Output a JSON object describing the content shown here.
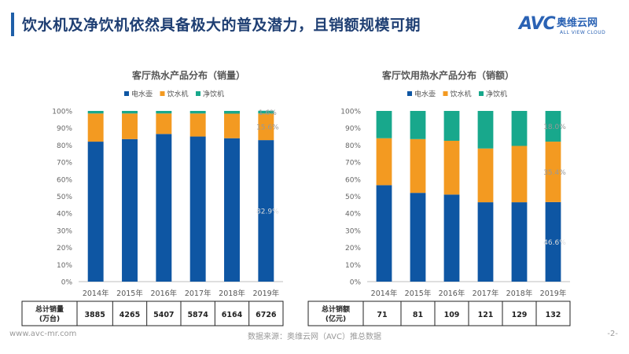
{
  "page": {
    "title": "饮水机及净饮机依然具备极大的普及潜力，且销额规模可期",
    "footer_url": "www.avc-mr.com",
    "footer_source": "数据来源：奥维云网（AVC）推总数据",
    "page_number": "-2-"
  },
  "logo": {
    "mark": "AVC",
    "cn": "奥维云网",
    "en": "ALL VIEW CLOUD"
  },
  "colors": {
    "electric_kettle": "#0e56a3",
    "water_dispenser": "#f39a21",
    "purifier_dispenser": "#18a88c"
  },
  "chart_data": [
    {
      "type": "bar",
      "stacked": true,
      "title": "客厅热水产品分布（销量）",
      "categories": [
        "2014年",
        "2015年",
        "2016年",
        "2017年",
        "2018年",
        "2019年"
      ],
      "series": [
        {
          "name": "电水壶",
          "values": [
            82,
            83.5,
            86.5,
            85,
            84,
            82.9
          ]
        },
        {
          "name": "饮水机",
          "values": [
            16.5,
            15,
            12,
            13.5,
            14.4,
            15.6
          ]
        },
        {
          "name": "净饮机",
          "values": [
            1.5,
            1.5,
            1.5,
            1.5,
            1.6,
            1.6
          ]
        }
      ],
      "data_labels": {
        "电水壶": "82.9%",
        "饮水机": "15.6%",
        "净饮机": "1.6%"
      },
      "ylim": [
        0,
        100
      ],
      "yticks": [
        "0%",
        "10%",
        "20%",
        "30%",
        "40%",
        "50%",
        "60%",
        "70%",
        "80%",
        "90%",
        "100%"
      ],
      "legend_position": "top",
      "grid": false,
      "table": {
        "header": "总计销量\n(万台)",
        "values": [
          "3885",
          "4265",
          "5407",
          "5874",
          "6164",
          "6726"
        ]
      }
    },
    {
      "type": "bar",
      "stacked": true,
      "title": "客厅饮用热水产品分布（销额）",
      "categories": [
        "2014年",
        "2015年",
        "2016年",
        "2017年",
        "2018年",
        "2019年"
      ],
      "series": [
        {
          "name": "电水壶",
          "values": [
            56.5,
            52,
            51,
            46.5,
            46.5,
            46.6
          ]
        },
        {
          "name": "饮水机",
          "values": [
            27.5,
            31.5,
            31.5,
            31.5,
            33,
            35.4
          ]
        },
        {
          "name": "净饮机",
          "values": [
            16,
            16.5,
            17.5,
            22,
            20.5,
            18
          ]
        }
      ],
      "data_labels": {
        "电水壶": "46.6%",
        "饮水机": "35.4%",
        "净饮机": "18.0%"
      },
      "ylim": [
        0,
        100
      ],
      "yticks": [
        "0%",
        "10%",
        "20%",
        "30%",
        "40%",
        "50%",
        "60%",
        "70%",
        "80%",
        "90%",
        "100%"
      ],
      "legend_position": "top",
      "grid": false,
      "table": {
        "header": "总计销额\n(亿元)",
        "values": [
          "71",
          "81",
          "109",
          "121",
          "129",
          "132"
        ]
      }
    }
  ]
}
